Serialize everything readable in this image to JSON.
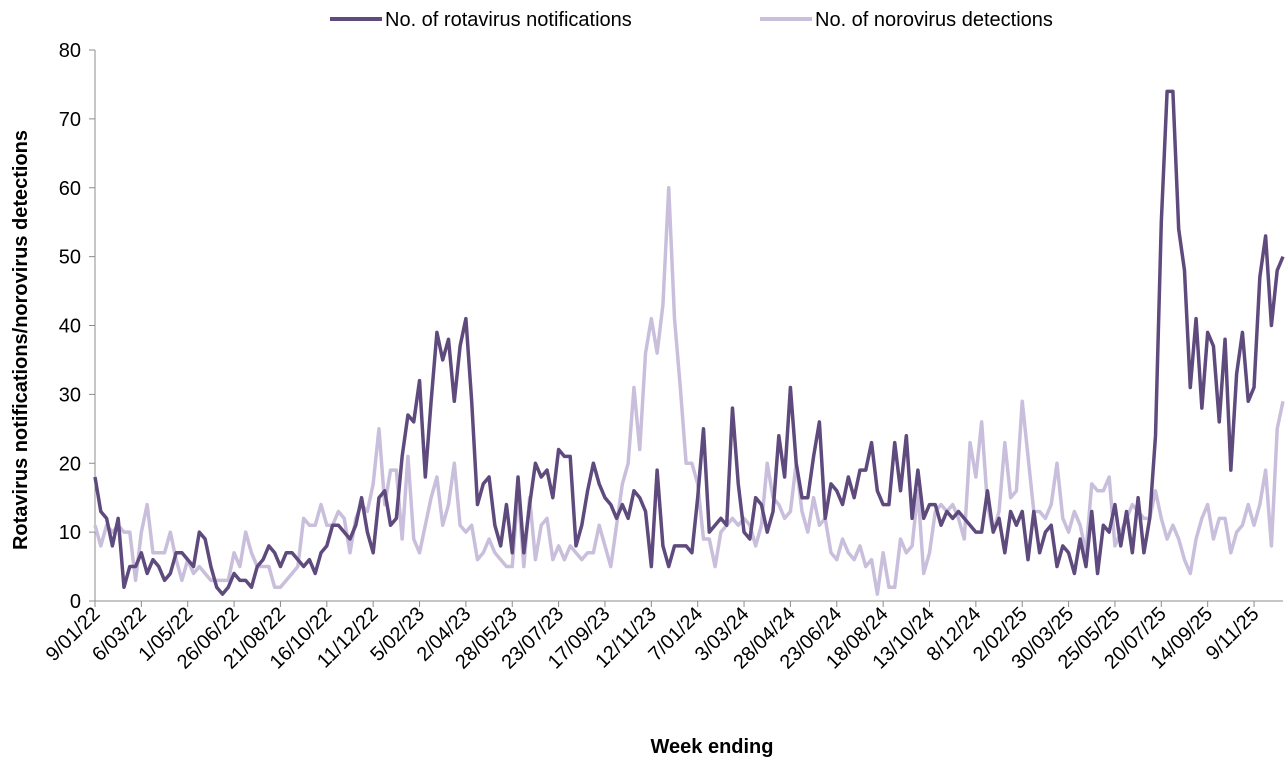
{
  "chart_data": {
    "type": "line",
    "x_label": "Week ending",
    "y_label": "Rotavirus notifications/norovirus detections",
    "categories": [
      "9/01/22",
      null,
      null,
      null,
      null,
      null,
      null,
      null,
      "6/03/22",
      null,
      null,
      null,
      null,
      null,
      null,
      null,
      "1/05/22",
      null,
      null,
      null,
      null,
      null,
      null,
      null,
      "26/06/22",
      null,
      null,
      null,
      null,
      null,
      null,
      null,
      "21/08/22",
      null,
      null,
      null,
      null,
      null,
      null,
      null,
      "16/10/22",
      null,
      null,
      null,
      null,
      null,
      null,
      null,
      "11/12/22",
      null,
      null,
      null,
      null,
      null,
      null,
      null,
      "5/02/23",
      null,
      null,
      null,
      null,
      null,
      null,
      null,
      "2/04/23",
      null,
      null,
      null,
      null,
      null,
      null,
      null,
      "28/05/23",
      null,
      null,
      null,
      null,
      null,
      null,
      null,
      "23/07/23",
      null,
      null,
      null,
      null,
      null,
      null,
      null,
      "17/09/23",
      null,
      null,
      null,
      null,
      null,
      null,
      null,
      "12/11/23",
      null,
      null,
      null,
      null,
      null,
      null,
      null,
      "7/01/24",
      null,
      null,
      null,
      null,
      null,
      null,
      null,
      "3/03/24",
      null,
      null,
      null,
      null,
      null,
      null,
      null,
      "28/04/24",
      null,
      null,
      null,
      null,
      null,
      null,
      null,
      "23/06/24",
      null,
      null,
      null,
      null,
      null,
      null,
      null,
      "18/08/24",
      null,
      null,
      null,
      null,
      null,
      null,
      null,
      "13/10/24",
      null,
      null,
      null,
      null,
      null,
      null,
      null,
      "8/12/24",
      null,
      null,
      null,
      null,
      null,
      null,
      null,
      "2/02/25",
      null,
      null,
      null,
      null,
      null,
      null,
      null,
      "30/03/25",
      null,
      null,
      null,
      null,
      null,
      null,
      null,
      "25/05/25",
      null,
      null,
      null,
      null,
      null,
      null,
      null,
      "20/07/25",
      null,
      null,
      null,
      null,
      null,
      null,
      null,
      "14/09/25",
      null,
      null,
      null,
      null,
      null,
      null,
      null,
      "9/11/25",
      null,
      null,
      null,
      null,
      null
    ],
    "series": [
      {
        "name": "No. of rotavirus notifications",
        "color": "#5e4a7d",
        "values": [
          18,
          13,
          12,
          8,
          12,
          2,
          5,
          5,
          7,
          4,
          6,
          5,
          3,
          4,
          7,
          7,
          6,
          5,
          10,
          9,
          5,
          2,
          1,
          2,
          4,
          3,
          3,
          2,
          5,
          6,
          8,
          7,
          5,
          7,
          7,
          6,
          5,
          6,
          4,
          7,
          8,
          11,
          11,
          10,
          9,
          11,
          15,
          10,
          7,
          15,
          16,
          11,
          12,
          21,
          27,
          26,
          32,
          18,
          29,
          39,
          35,
          38,
          29,
          37,
          41,
          29,
          14,
          17,
          18,
          11,
          8,
          14,
          7,
          18,
          7,
          14,
          20,
          18,
          19,
          15,
          22,
          21,
          21,
          8,
          11,
          16,
          20,
          17,
          15,
          14,
          12,
          14,
          12,
          16,
          15,
          13,
          5,
          19,
          8,
          5,
          8,
          8,
          8,
          7,
          15,
          25,
          10,
          11,
          12,
          11,
          28,
          17,
          10,
          9,
          15,
          14,
          10,
          13,
          24,
          18,
          31,
          20,
          15,
          15,
          21,
          26,
          12,
          17,
          16,
          14,
          18,
          15,
          19,
          19,
          23,
          16,
          14,
          14,
          23,
          16,
          24,
          12,
          19,
          12,
          14,
          14,
          11,
          13,
          12,
          13,
          12,
          11,
          10,
          10,
          16,
          10,
          12,
          7,
          13,
          11,
          13,
          6,
          13,
          7,
          10,
          11,
          5,
          8,
          7,
          4,
          9,
          5,
          13,
          4,
          11,
          10,
          14,
          8,
          13,
          7,
          15,
          7,
          12,
          24,
          55,
          74,
          74,
          54,
          48,
          31,
          41,
          28,
          39,
          37,
          26,
          38,
          19,
          33,
          39,
          29,
          31,
          47,
          53,
          40,
          48,
          50
        ]
      },
      {
        "name": "No. of norovirus detections",
        "color": "#c9bfdc",
        "values": [
          11,
          8,
          11,
          10,
          11,
          10,
          10,
          3,
          10,
          14,
          7,
          7,
          7,
          10,
          6,
          3,
          6,
          4,
          5,
          4,
          3,
          3,
          3,
          3,
          7,
          5,
          10,
          7,
          5,
          5,
          5,
          2,
          2,
          3,
          4,
          5,
          12,
          11,
          11,
          14,
          11,
          11,
          13,
          12,
          7,
          12,
          14,
          13,
          17,
          25,
          14,
          19,
          19,
          9,
          21,
          9,
          7,
          11,
          15,
          18,
          11,
          14,
          20,
          11,
          10,
          11,
          6,
          7,
          9,
          7,
          6,
          5,
          5,
          16,
          5,
          15,
          6,
          11,
          12,
          6,
          8,
          6,
          8,
          7,
          6,
          7,
          7,
          11,
          8,
          5,
          11,
          17,
          20,
          31,
          22,
          36,
          41,
          36,
          43,
          60,
          41,
          31,
          20,
          20,
          17,
          9,
          9,
          5,
          10,
          11,
          12,
          11,
          12,
          11,
          8,
          11,
          20,
          15,
          14,
          12,
          13,
          20,
          13,
          10,
          15,
          11,
          12,
          7,
          6,
          9,
          7,
          6,
          8,
          5,
          6,
          1,
          7,
          2,
          2,
          9,
          7,
          8,
          16,
          4,
          7,
          13,
          14,
          13,
          14,
          12,
          9,
          23,
          18,
          26,
          14,
          10,
          13,
          23,
          15,
          16,
          29,
          21,
          13,
          13,
          12,
          14,
          20,
          12,
          10,
          13,
          11,
          7,
          17,
          16,
          16,
          18,
          8,
          10,
          12,
          14,
          13,
          12,
          12,
          16,
          12,
          9,
          11,
          9,
          6,
          4,
          9,
          12,
          14,
          9,
          12,
          12,
          7,
          10,
          11,
          14,
          11,
          14,
          19,
          8,
          25,
          29
        ]
      }
    ],
    "ylim": [
      0,
      80
    ],
    "yticks": [
      0,
      10,
      20,
      30,
      40,
      50,
      60,
      70,
      80
    ],
    "legend": "top"
  }
}
